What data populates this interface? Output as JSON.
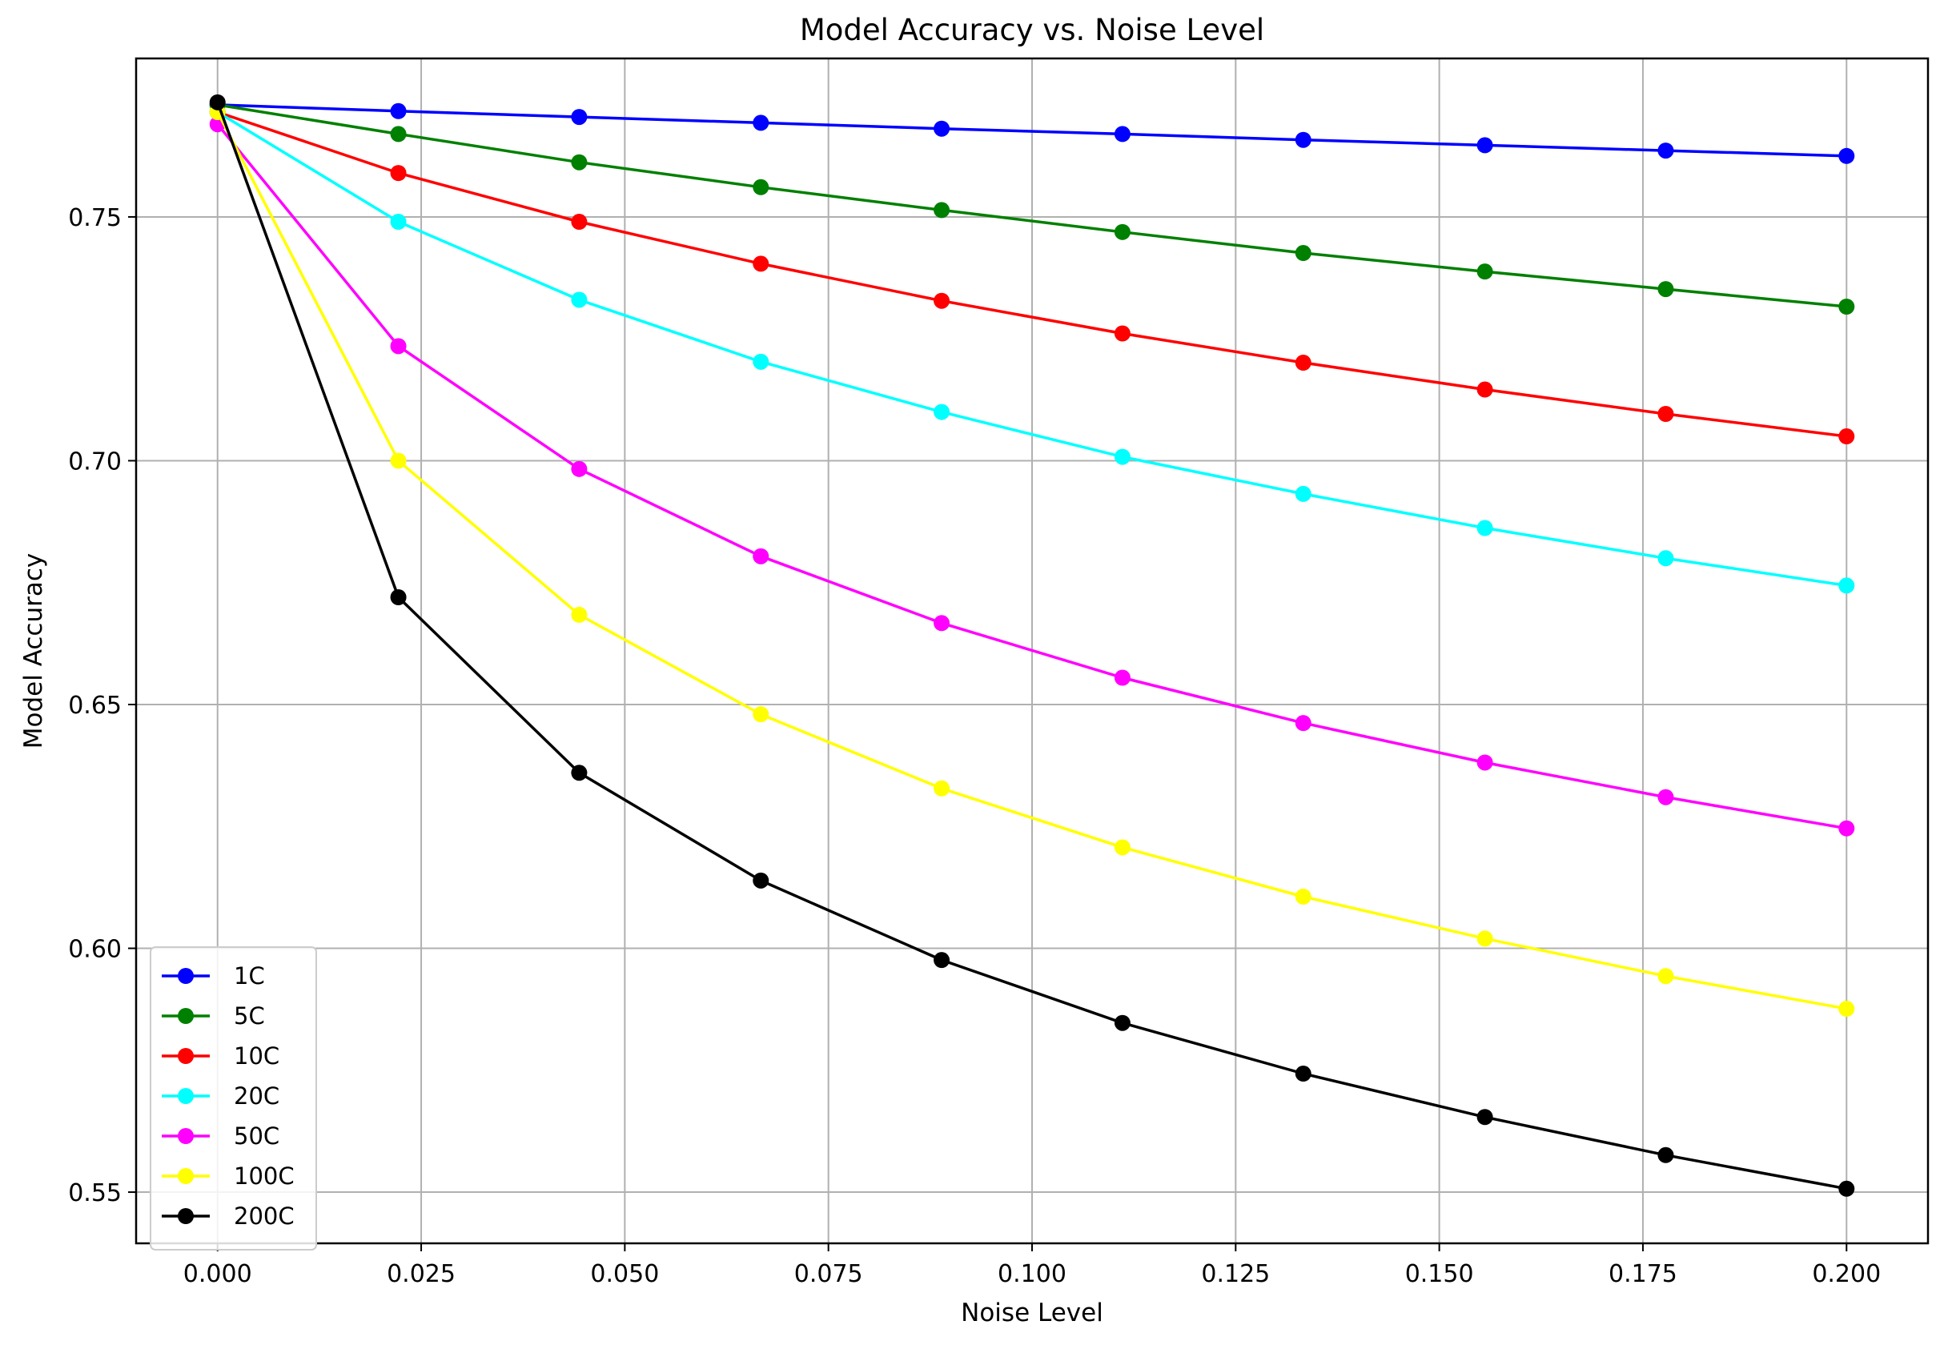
{
  "chart_data": {
    "type": "line",
    "title": "Model Accuracy vs. Noise Level",
    "xlabel": "Noise Level",
    "ylabel": "Model Accuracy",
    "xlim": [
      -0.01,
      0.21
    ],
    "ylim": [
      0.5395,
      0.7825
    ],
    "grid": true,
    "legend_position": "lower left",
    "xticks": [
      0.0,
      0.025,
      0.05,
      0.075,
      0.1,
      0.125,
      0.15,
      0.175,
      0.2
    ],
    "xtick_labels": [
      "0.000",
      "0.025",
      "0.050",
      "0.075",
      "0.100",
      "0.125",
      "0.150",
      "0.175",
      "0.200"
    ],
    "yticks": [
      0.55,
      0.6,
      0.65,
      0.7,
      0.75
    ],
    "ytick_labels": [
      "0.55",
      "0.60",
      "0.65",
      "0.70",
      "0.75"
    ],
    "x": [
      0.0,
      0.0222,
      0.0444,
      0.0667,
      0.0889,
      0.1111,
      0.1333,
      0.1556,
      0.1778,
      0.2
    ],
    "series": [
      {
        "name": "1C",
        "color": "#0000ff",
        "values": [
          0.773,
          0.7717,
          0.7705,
          0.7693,
          0.7681,
          0.767,
          0.7658,
          0.7647,
          0.7636,
          0.7625
        ]
      },
      {
        "name": "5C",
        "color": "#008000",
        "values": [
          0.773,
          0.767,
          0.7612,
          0.7561,
          0.7514,
          0.7469,
          0.7426,
          0.7388,
          0.7352,
          0.7316
        ]
      },
      {
        "name": "10C",
        "color": "#ff0000",
        "values": [
          0.7715,
          0.759,
          0.749,
          0.7404,
          0.7328,
          0.7261,
          0.7201,
          0.7146,
          0.7096,
          0.705
        ]
      },
      {
        "name": "20C",
        "color": "#00ffff",
        "values": [
          0.7715,
          0.749,
          0.733,
          0.7203,
          0.71,
          0.7008,
          0.6932,
          0.6862,
          0.68,
          0.6744
        ]
      },
      {
        "name": "50C",
        "color": "#ff00ff",
        "values": [
          0.769,
          0.7235,
          0.6983,
          0.6804,
          0.6667,
          0.6555,
          0.6462,
          0.6381,
          0.631,
          0.6246
        ]
      },
      {
        "name": "100C",
        "color": "#ffff00",
        "values": [
          0.7715,
          0.7,
          0.6684,
          0.648,
          0.6328,
          0.6207,
          0.6106,
          0.602,
          0.5943,
          0.5876
        ]
      },
      {
        "name": "200C",
        "color": "#000000",
        "values": [
          0.7735,
          0.672,
          0.636,
          0.6139,
          0.5976,
          0.5847,
          0.5743,
          0.5654,
          0.5576,
          0.5507
        ]
      }
    ]
  }
}
